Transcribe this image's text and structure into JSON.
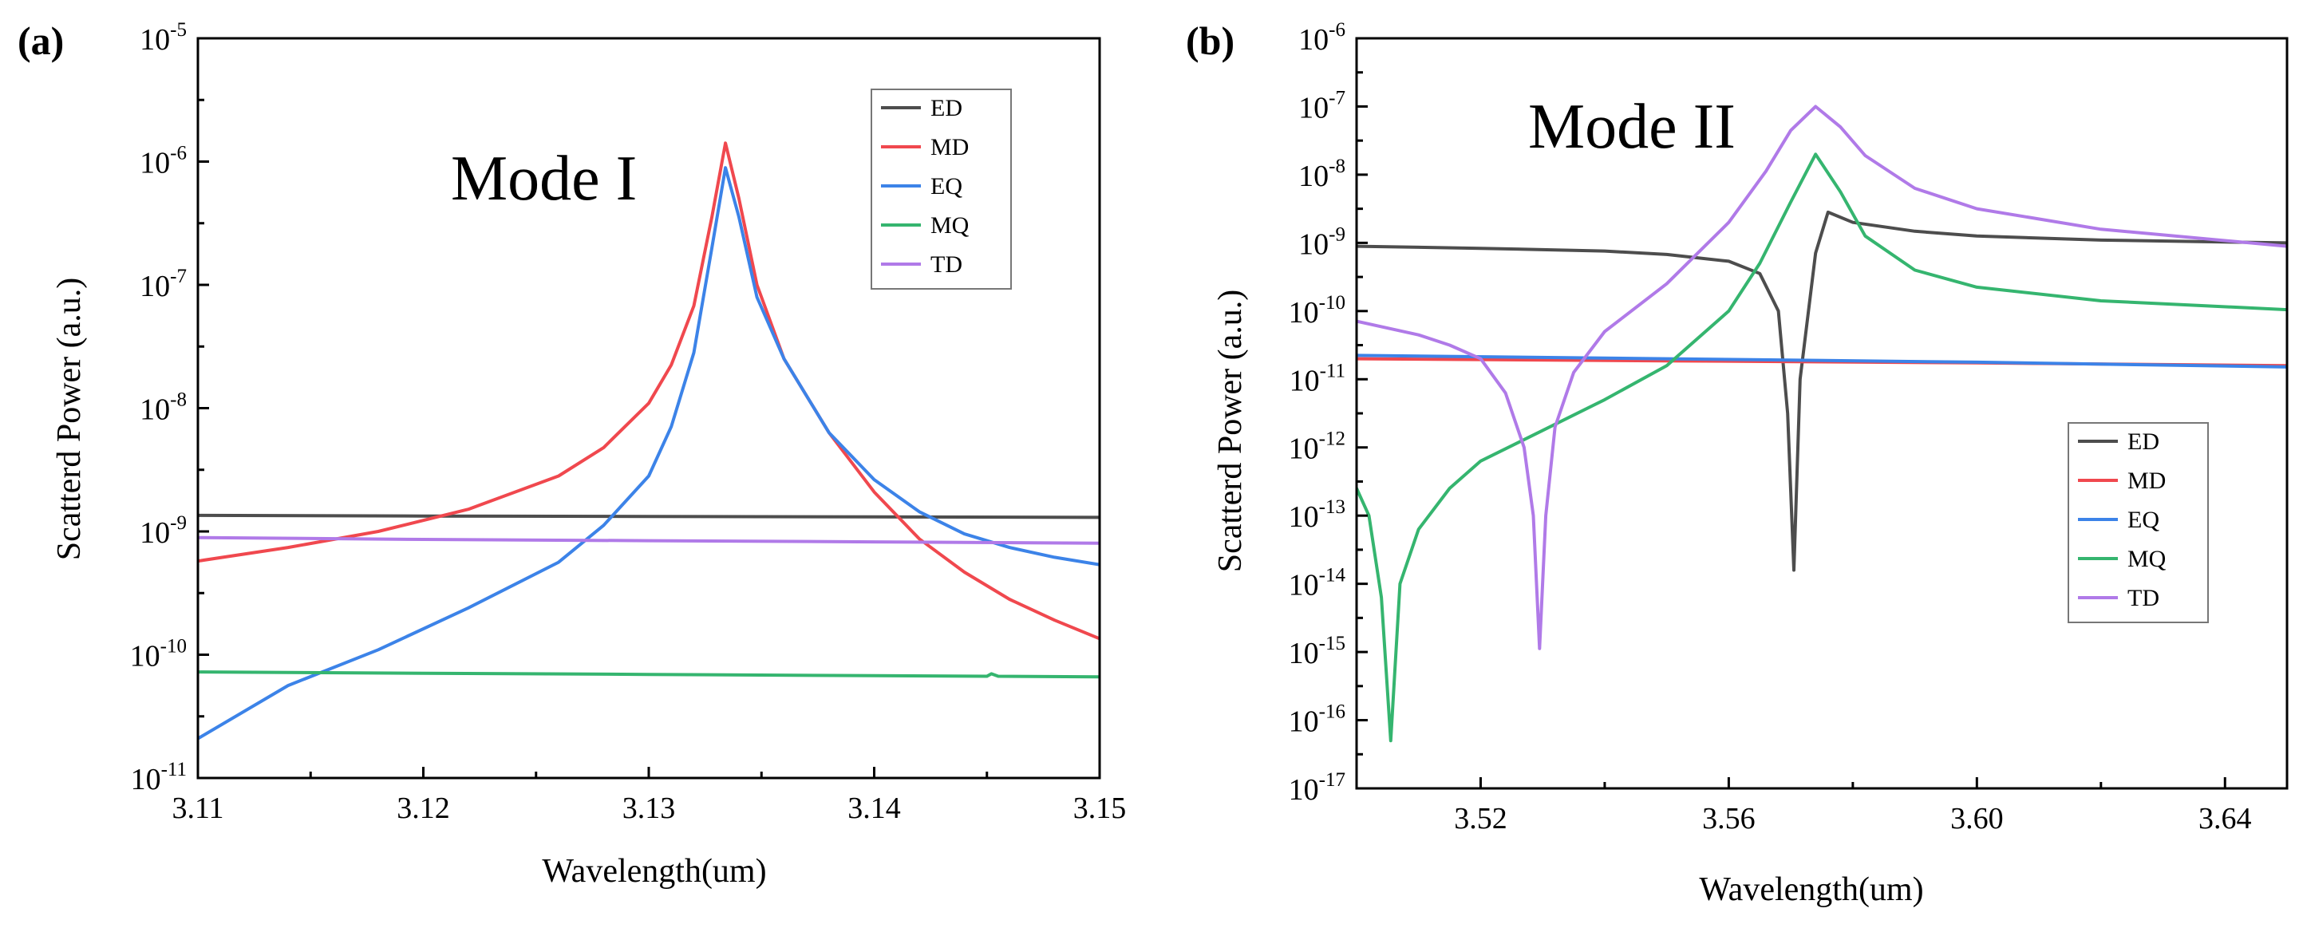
{
  "colors": {
    "ED": "#4d4d4d",
    "MD": "#f0484e",
    "EQ": "#3c83e8",
    "MQ": "#35b56f",
    "TD": "#b07ae8"
  },
  "chart_data": [
    {
      "type": "line",
      "panel_label": "(a)",
      "title": "Mode I",
      "xlabel": "Wavelength(um)",
      "ylabel": "Scatterd Power (a.u.)",
      "yscale": "log",
      "xlim": [
        3.11,
        3.15
      ],
      "ylim_log10": [
        -11,
        -5
      ],
      "x_ticks": [
        3.11,
        3.12,
        3.13,
        3.14,
        3.15
      ],
      "x_tick_labels": [
        "3.11",
        "3.12",
        "3.13",
        "3.14",
        "3.15"
      ],
      "y_tick_exponents": [
        -11,
        -10,
        -9,
        -8,
        -7,
        -6,
        -5
      ],
      "legend": [
        "ED",
        "MD",
        "EQ",
        "MQ",
        "TD"
      ],
      "legend_position": "top-right",
      "series": [
        {
          "name": "ED",
          "x": [
            3.11,
            3.12,
            3.13,
            3.14,
            3.15
          ],
          "log10_y": [
            -8.87,
            -8.875,
            -8.878,
            -8.882,
            -8.886
          ]
        },
        {
          "name": "MD",
          "x": [
            3.11,
            3.114,
            3.118,
            3.122,
            3.126,
            3.128,
            3.13,
            3.131,
            3.132,
            3.1328,
            3.1334,
            3.134,
            3.1348,
            3.136,
            3.138,
            3.14,
            3.142,
            3.144,
            3.146,
            3.148,
            3.15
          ],
          "log10_y": [
            -9.24,
            -9.13,
            -9.0,
            -8.82,
            -8.55,
            -8.32,
            -7.96,
            -7.65,
            -7.17,
            -6.45,
            -5.85,
            -6.3,
            -7.0,
            -7.6,
            -8.2,
            -8.68,
            -9.06,
            -9.33,
            -9.55,
            -9.72,
            -9.87
          ]
        },
        {
          "name": "EQ",
          "x": [
            3.11,
            3.114,
            3.118,
            3.122,
            3.126,
            3.128,
            3.13,
            3.131,
            3.132,
            3.1328,
            3.1334,
            3.134,
            3.1348,
            3.136,
            3.138,
            3.14,
            3.142,
            3.144,
            3.146,
            3.148,
            3.15
          ],
          "log10_y": [
            -10.68,
            -10.25,
            -9.96,
            -9.62,
            -9.25,
            -8.95,
            -8.55,
            -8.15,
            -7.55,
            -6.7,
            -6.05,
            -6.45,
            -7.1,
            -7.6,
            -8.2,
            -8.58,
            -8.84,
            -9.02,
            -9.13,
            -9.21,
            -9.27
          ]
        },
        {
          "name": "MQ",
          "x": [
            3.11,
            3.12,
            3.13,
            3.14,
            3.145,
            3.1452,
            3.1455,
            3.15
          ],
          "log10_y": [
            -10.14,
            -10.15,
            -10.16,
            -10.17,
            -10.175,
            -10.155,
            -10.175,
            -10.18
          ]
        },
        {
          "name": "TD",
          "x": [
            3.11,
            3.12,
            3.13,
            3.14,
            3.15
          ],
          "log10_y": [
            -9.05,
            -9.065,
            -9.075,
            -9.085,
            -9.095
          ]
        }
      ]
    },
    {
      "type": "line",
      "panel_label": "(b)",
      "title": "Mode II",
      "xlabel": "Wavelength(um)",
      "ylabel": "Scatterd Power (a.u.)",
      "yscale": "log",
      "xlim": [
        3.5,
        3.65
      ],
      "ylim_log10": [
        -17,
        -6
      ],
      "x_ticks": [
        3.52,
        3.56,
        3.6,
        3.64
      ],
      "x_tick_labels": [
        "3.52",
        "3.56",
        "3.60",
        "3.64"
      ],
      "y_tick_exponents": [
        -17,
        -16,
        -15,
        -14,
        -13,
        -12,
        -11,
        -10,
        -9,
        -8,
        -7,
        -6
      ],
      "legend": [
        "ED",
        "MD",
        "EQ",
        "MQ",
        "TD"
      ],
      "legend_position": "center-right",
      "series": [
        {
          "name": "ED",
          "x": [
            3.5,
            3.52,
            3.54,
            3.55,
            3.56,
            3.565,
            3.568,
            3.5695,
            3.5705,
            3.5715,
            3.574,
            3.576,
            3.58,
            3.59,
            3.6,
            3.62,
            3.65
          ],
          "log10_y": [
            -9.05,
            -9.08,
            -9.12,
            -9.17,
            -9.27,
            -9.45,
            -10.0,
            -11.5,
            -13.8,
            -11.0,
            -9.15,
            -8.55,
            -8.7,
            -8.83,
            -8.9,
            -8.96,
            -9.0
          ]
        },
        {
          "name": "MD",
          "x": [
            3.5,
            3.55,
            3.6,
            3.65
          ],
          "log10_y": [
            -10.7,
            -10.73,
            -10.76,
            -10.8
          ]
        },
        {
          "name": "EQ",
          "x": [
            3.5,
            3.55,
            3.6,
            3.65
          ],
          "log10_y": [
            -10.65,
            -10.7,
            -10.75,
            -10.82
          ]
        },
        {
          "name": "MQ",
          "x": [
            3.5,
            3.502,
            3.504,
            3.5055,
            3.507,
            3.51,
            3.515,
            3.52,
            3.53,
            3.54,
            3.55,
            3.56,
            3.565,
            3.57,
            3.574,
            3.578,
            3.582,
            3.59,
            3.6,
            3.62,
            3.65
          ],
          "log10_y": [
            -12.6,
            -13.0,
            -14.2,
            -16.3,
            -14.0,
            -13.2,
            -12.6,
            -12.2,
            -11.75,
            -11.3,
            -10.8,
            -10.0,
            -9.3,
            -8.4,
            -7.7,
            -8.25,
            -8.9,
            -9.4,
            -9.65,
            -9.85,
            -9.98
          ]
        },
        {
          "name": "TD",
          "x": [
            3.5,
            3.51,
            3.515,
            3.52,
            3.524,
            3.527,
            3.5285,
            3.5295,
            3.5305,
            3.532,
            3.535,
            3.54,
            3.55,
            3.56,
            3.566,
            3.57,
            3.574,
            3.578,
            3.582,
            3.59,
            3.6,
            3.62,
            3.65
          ],
          "log10_y": [
            -10.15,
            -10.35,
            -10.5,
            -10.7,
            -11.2,
            -12.0,
            -13.0,
            -14.95,
            -13.0,
            -11.7,
            -10.9,
            -10.3,
            -9.6,
            -8.7,
            -7.95,
            -7.35,
            -7.0,
            -7.3,
            -7.72,
            -8.2,
            -8.5,
            -8.8,
            -9.05
          ]
        }
      ]
    }
  ]
}
